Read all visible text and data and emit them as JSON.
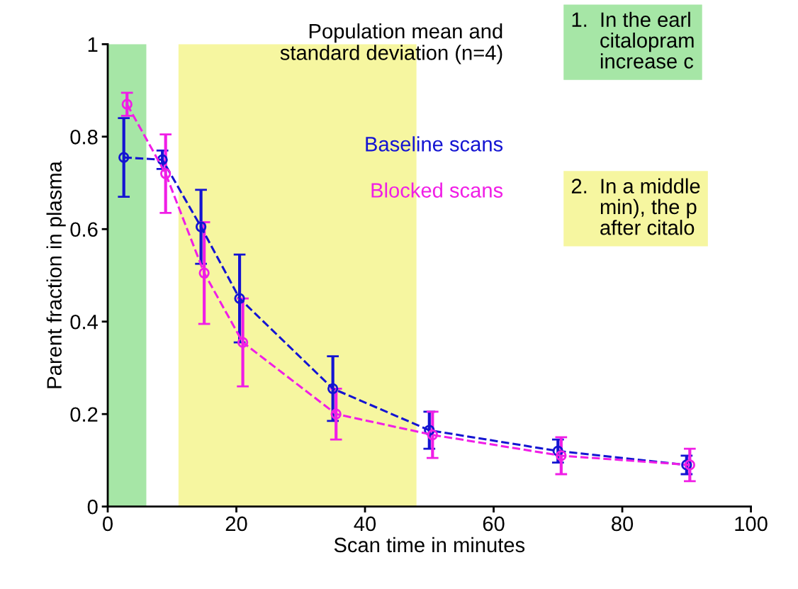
{
  "chart_data": {
    "type": "line",
    "title": "Population mean and\nstandard deviation (n=4)",
    "xlabel": "Scan time in minutes",
    "ylabel": "Parent fraction in plasma",
    "series": [
      {
        "name": "Baseline scans",
        "color": "#1414d2",
        "x": [
          2.5,
          8.5,
          14.5,
          20.5,
          35,
          50,
          70,
          90
        ],
        "values": [
          0.755,
          0.75,
          0.605,
          0.45,
          0.255,
          0.165,
          0.12,
          0.09
        ],
        "errors": [
          0.085,
          0.02,
          0.08,
          0.095,
          0.07,
          0.04,
          0.025,
          0.02
        ]
      },
      {
        "name": "Blocked scans",
        "color": "#f01ee6",
        "x": [
          3,
          9,
          15,
          21,
          35.5,
          50.5,
          70.5,
          90.5
        ],
        "values": [
          0.87,
          0.72,
          0.505,
          0.355,
          0.2,
          0.155,
          0.11,
          0.09
        ],
        "errors": [
          0.025,
          0.085,
          0.11,
          0.095,
          0.055,
          0.05,
          0.04,
          0.035
        ]
      }
    ],
    "bands": [
      {
        "axis": "x",
        "from": 0,
        "to": 6,
        "color": "#a6e6a6"
      },
      {
        "axis": "x",
        "from": 11,
        "to": 48,
        "color": "#f6f6a0"
      }
    ],
    "annotations": [
      "1.  In the earl\n     citalopram\n     increase c",
      "2.  In a middle\n     min), the p\n     after citalo"
    ],
    "xlim": [
      0,
      100
    ],
    "xticks": [
      0,
      20,
      40,
      60,
      80,
      100
    ],
    "ylim": [
      0,
      1
    ],
    "yticks": [
      0,
      0.2,
      0.4,
      0.6,
      0.8,
      1
    ],
    "marker": "circle",
    "line_style": "dashed",
    "grid": false,
    "legend": "top right"
  }
}
